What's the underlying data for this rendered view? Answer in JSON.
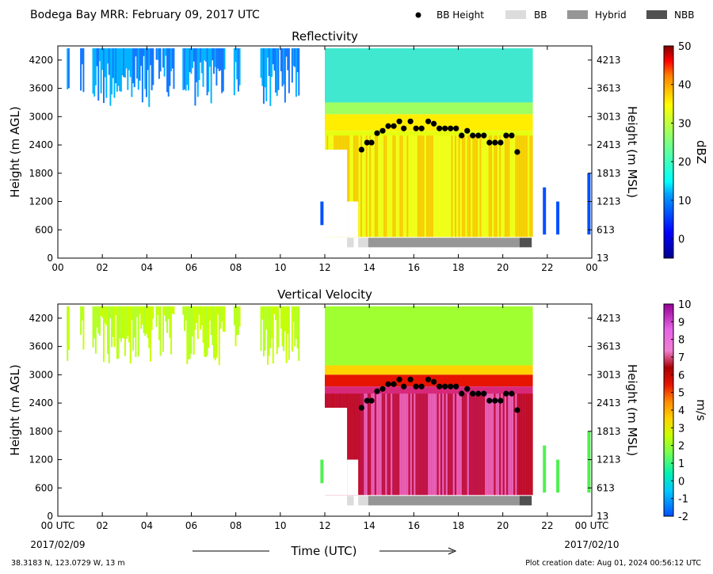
{
  "header": {
    "title": "Bodega Bay MRR:  February 09, 2017 UTC",
    "legend": [
      {
        "label": "BB Height",
        "kind": "dot",
        "color": "#000000"
      },
      {
        "label": "BB",
        "kind": "swatch",
        "color": "#dcdcdc"
      },
      {
        "label": "Hybrid",
        "kind": "swatch",
        "color": "#969696"
      },
      {
        "label": "NBB",
        "kind": "swatch",
        "color": "#505050"
      }
    ]
  },
  "footer": {
    "location": "38.3183 N, 123.0729 W, 13 m",
    "creation_date": "Plot creation date: Aug 01, 2024 00:56:12 UTC",
    "xlabel": "Time (UTC)",
    "start_date": "2017/02/09",
    "end_date": "2017/02/10"
  },
  "chart_data": [
    {
      "type": "heatmap",
      "title": "Reflectivity",
      "ylabel": "Height (m AGL)",
      "ylabel_right": "Height (m MSL)",
      "xlim": [
        0,
        24
      ],
      "ylim": [
        0,
        4500
      ],
      "x_ticks": [
        "00",
        "02",
        "04",
        "06",
        "08",
        "10",
        "12",
        "14",
        "16",
        "18",
        "20",
        "22",
        "00"
      ],
      "y_ticks": [
        0,
        600,
        1200,
        1800,
        2400,
        3000,
        3600,
        4200
      ],
      "y_ticks_right": [
        13,
        613,
        1213,
        1813,
        2413,
        3013,
        3613,
        4213
      ],
      "colorbar": {
        "label": "dBZ",
        "min": -5,
        "max": 50,
        "ticks": [
          0,
          10,
          20,
          30,
          40,
          50
        ]
      },
      "bb_height": {
        "x": [
          13.65,
          13.9,
          14.1,
          14.35,
          14.6,
          14.85,
          15.1,
          15.35,
          15.55,
          15.85,
          16.1,
          16.35,
          16.65,
          16.9,
          17.15,
          17.4,
          17.65,
          17.9,
          18.15,
          18.4,
          18.65,
          18.9,
          19.15,
          19.4,
          19.65,
          19.9,
          20.15,
          20.4,
          20.65
        ],
        "y": [
          2300,
          2450,
          2450,
          2650,
          2700,
          2800,
          2800,
          2900,
          2750,
          2900,
          2750,
          2750,
          2900,
          2850,
          2750,
          2750,
          2750,
          2750,
          2600,
          2700,
          2600,
          2600,
          2600,
          2450,
          2450,
          2450,
          2600,
          2600,
          2250
        ]
      },
      "classification": [
        {
          "label": "BB",
          "x0": 13.0,
          "x1": 13.3
        },
        {
          "label": "BB",
          "x0": 13.5,
          "x1": 13.95
        },
        {
          "label": "Hybrid",
          "x0": 13.95,
          "x1": 20.75
        },
        {
          "label": "NBB",
          "x0": 20.75,
          "x1": 21.3
        }
      ]
    },
    {
      "type": "heatmap",
      "title": "Vertical Velocity",
      "ylabel": "Height (m AGL)",
      "ylabel_right": "Height (m MSL)",
      "xlim": [
        0,
        24
      ],
      "ylim": [
        0,
        4500
      ],
      "x_ticks": [
        "00 UTC",
        "02",
        "04",
        "06",
        "08",
        "10",
        "12",
        "14",
        "16",
        "18",
        "20",
        "22",
        "00 UTC"
      ],
      "y_ticks": [
        0,
        600,
        1200,
        1800,
        2400,
        3000,
        3600,
        4200
      ],
      "y_ticks_right": [
        13,
        613,
        1213,
        1813,
        2413,
        3013,
        3613,
        4213
      ],
      "colorbar": {
        "label": "m/s",
        "min": -2,
        "max": 10,
        "ticks": [
          -2,
          -1,
          0,
          1,
          2,
          3,
          4,
          5,
          6,
          7,
          8,
          9,
          10
        ]
      },
      "bb_height": {
        "x": [
          13.65,
          13.9,
          14.1,
          14.35,
          14.6,
          14.85,
          15.1,
          15.35,
          15.55,
          15.85,
          16.1,
          16.35,
          16.65,
          16.9,
          17.15,
          17.4,
          17.65,
          17.9,
          18.15,
          18.4,
          18.65,
          18.9,
          19.15,
          19.4,
          19.65,
          19.9,
          20.15,
          20.4,
          20.65
        ],
        "y": [
          2300,
          2450,
          2450,
          2650,
          2700,
          2800,
          2800,
          2900,
          2750,
          2900,
          2750,
          2750,
          2900,
          2850,
          2750,
          2750,
          2750,
          2750,
          2600,
          2700,
          2600,
          2600,
          2600,
          2450,
          2450,
          2450,
          2600,
          2600,
          2250
        ]
      },
      "classification": [
        {
          "label": "BB",
          "x0": 13.0,
          "x1": 13.3
        },
        {
          "label": "BB",
          "x0": 13.5,
          "x1": 13.95
        },
        {
          "label": "Hybrid",
          "x0": 13.95,
          "x1": 20.75
        },
        {
          "label": "NBB",
          "x0": 20.75,
          "x1": 21.3
        }
      ]
    }
  ]
}
